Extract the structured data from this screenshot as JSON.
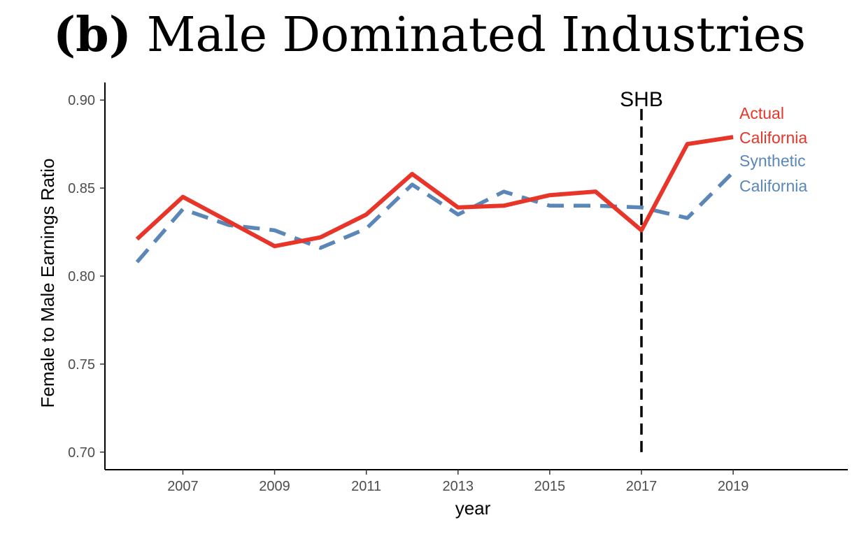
{
  "title": {
    "panel": "(b)",
    "text": "Male Dominated Industries"
  },
  "chart_data": {
    "type": "line",
    "title": "(b) Male Dominated Industries",
    "xlabel": "year",
    "ylabel": "Female to Male Earnings Ratio",
    "xlim": [
      2005.3,
      2021.5
    ],
    "ylim": [
      0.69,
      0.91
    ],
    "x_ticks": [
      2007,
      2009,
      2011,
      2013,
      2015,
      2017,
      2019
    ],
    "y_ticks": [
      0.7,
      0.75,
      0.8,
      0.85,
      0.9
    ],
    "y_tick_labels": [
      "0.70",
      "0.75",
      "0.80",
      "0.85",
      "0.90"
    ],
    "x": [
      2006,
      2007,
      2008,
      2009,
      2010,
      2011,
      2012,
      2013,
      2014,
      2015,
      2016,
      2017,
      2018,
      2019
    ],
    "series": [
      {
        "name": "Actual California",
        "label_lines": [
          "Actual",
          "California"
        ],
        "color": "#e8352a",
        "style": "solid",
        "values": [
          0.821,
          0.845,
          0.831,
          0.817,
          0.822,
          0.835,
          0.858,
          0.839,
          0.84,
          0.846,
          0.848,
          0.826,
          0.875,
          0.879
        ]
      },
      {
        "name": "Synthetic California",
        "label_lines": [
          "Synthetic",
          "California"
        ],
        "color": "#5a87b8",
        "style": "dashed",
        "values": [
          0.808,
          0.838,
          0.829,
          0.826,
          0.816,
          0.827,
          0.852,
          0.835,
          0.848,
          0.84,
          0.84,
          0.839,
          0.833,
          0.859
        ]
      }
    ],
    "annotations": [
      {
        "type": "vline",
        "x": 2017,
        "y_from": 0.7,
        "y_to": 0.895,
        "style": "dashed",
        "color": "#000000",
        "label": "SHB"
      }
    ],
    "grid": false,
    "legend": "right, direct labels"
  }
}
